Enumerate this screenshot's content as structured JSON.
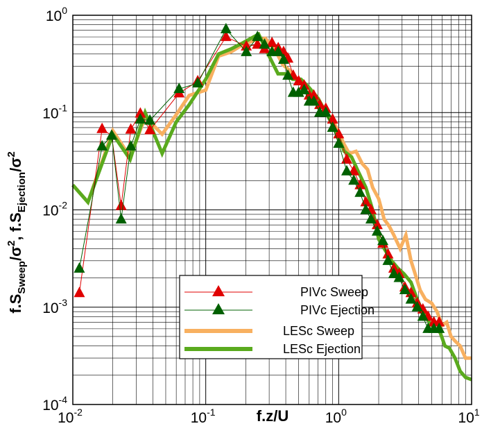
{
  "chart_data": {
    "type": "line",
    "x_scale": "log",
    "y_scale": "log",
    "xlim": [
      0.01,
      10
    ],
    "ylim": [
      0.0001,
      1
    ],
    "grid": true,
    "legend_position": "bottom-center",
    "xlabel": "f.z/U",
    "ylabel": {
      "p1": "f.S",
      "s1": "Sweep",
      "p2": "/σ",
      "e2": "2",
      "p3": ", f.S",
      "s3": "Ejection",
      "p4": "/σ",
      "e4": "2"
    },
    "x_tick_labels": [
      {
        "value": 0.01,
        "base": "10",
        "exp": "-2"
      },
      {
        "value": 0.1,
        "base": "10",
        "exp": "-1"
      },
      {
        "value": 1,
        "base": "10",
        "exp": "0"
      },
      {
        "value": 10,
        "base": "10",
        "exp": "1"
      }
    ],
    "y_tick_labels": [
      {
        "value": 0.0001,
        "base": "10",
        "exp": "-4"
      },
      {
        "value": 0.001,
        "base": "10",
        "exp": "-3"
      },
      {
        "value": 0.01,
        "base": "10",
        "exp": "-2"
      },
      {
        "value": 0.1,
        "base": "10",
        "exp": "-1"
      },
      {
        "value": 1,
        "base": "10",
        "exp": "0"
      }
    ],
    "series": [
      {
        "name": "PIVc Sweep",
        "style": "line-triangles",
        "color": "#e00000",
        "x": [
          0.0112,
          0.0166,
          0.0196,
          0.0231,
          0.0273,
          0.0322,
          0.038,
          0.063,
          0.087,
          0.142,
          0.202,
          0.245,
          0.277,
          0.315,
          0.351,
          0.385,
          0.415,
          0.455,
          0.5,
          0.55,
          0.6,
          0.65,
          0.72,
          0.8,
          0.9,
          1.0,
          1.15,
          1.3,
          1.45,
          1.6,
          1.75,
          1.95,
          2.15,
          2.35,
          2.6,
          2.85,
          3.15,
          3.5,
          3.9,
          4.3,
          4.7,
          5.2,
          5.7
        ],
        "y": [
          0.0014,
          0.068,
          0.058,
          0.011,
          0.067,
          0.098,
          0.066,
          0.158,
          0.21,
          0.6,
          0.48,
          0.5,
          0.45,
          0.52,
          0.46,
          0.42,
          0.36,
          0.24,
          0.21,
          0.19,
          0.15,
          0.15,
          0.12,
          0.11,
          0.085,
          0.06,
          0.033,
          0.025,
          0.018,
          0.012,
          0.01,
          0.007,
          0.0045,
          0.0035,
          0.0025,
          0.0022,
          0.0016,
          0.0014,
          0.0011,
          0.00095,
          0.0008,
          0.0007,
          0.0007
        ]
      },
      {
        "name": "PIVc Ejection",
        "style": "line-triangles",
        "color": "#006000",
        "x": [
          0.0112,
          0.0166,
          0.0196,
          0.0231,
          0.0273,
          0.0322,
          0.038,
          0.063,
          0.087,
          0.142,
          0.202,
          0.245,
          0.277,
          0.315,
          0.351,
          0.385,
          0.415,
          0.455,
          0.5,
          0.55,
          0.6,
          0.65,
          0.72,
          0.8,
          0.9,
          1.0,
          1.15,
          1.3,
          1.45,
          1.6,
          1.75,
          1.95,
          2.15,
          2.35,
          2.6,
          2.85,
          3.15,
          3.5,
          3.9,
          4.3,
          4.7,
          5.2,
          5.7
        ],
        "y": [
          0.0025,
          0.045,
          0.058,
          0.008,
          0.045,
          0.085,
          0.083,
          0.175,
          0.2,
          0.72,
          0.42,
          0.6,
          0.5,
          0.42,
          0.42,
          0.35,
          0.24,
          0.16,
          0.16,
          0.17,
          0.13,
          0.13,
          0.1,
          0.1,
          0.07,
          0.048,
          0.025,
          0.02,
          0.015,
          0.01,
          0.008,
          0.006,
          0.0048,
          0.003,
          0.0022,
          0.002,
          0.0015,
          0.0012,
          0.001,
          0.0008,
          0.0006,
          0.0006,
          0.0006
        ]
      },
      {
        "name": "LESc Sweep",
        "style": "thick-line",
        "color": "#f8b060",
        "x": [
          0.01,
          0.013,
          0.02,
          0.027,
          0.035,
          0.047,
          0.06,
          0.075,
          0.1,
          0.125,
          0.155,
          0.19,
          0.23,
          0.28,
          0.33,
          0.38,
          0.43,
          0.48,
          0.55,
          0.62,
          0.7,
          0.8,
          0.9,
          1.0,
          1.1,
          1.2,
          1.35,
          1.5,
          1.65,
          1.8,
          2.0,
          2.2,
          2.4,
          2.6,
          2.9,
          3.2,
          3.5,
          3.8,
          4.1,
          4.5,
          5.0,
          5.5,
          6.0,
          6.5,
          7.0,
          7.5,
          8.2,
          9.0,
          10.0
        ],
        "y": [
          0.018,
          0.012,
          0.065,
          0.035,
          0.09,
          0.06,
          0.095,
          0.15,
          0.17,
          0.38,
          0.42,
          0.5,
          0.55,
          0.58,
          0.45,
          0.31,
          0.27,
          0.22,
          0.19,
          0.17,
          0.14,
          0.1,
          0.085,
          0.062,
          0.047,
          0.038,
          0.04,
          0.03,
          0.026,
          0.017,
          0.013,
          0.008,
          0.0068,
          0.0055,
          0.004,
          0.0055,
          0.003,
          0.0021,
          0.0015,
          0.0012,
          0.0011,
          0.0009,
          0.00065,
          0.0007,
          0.0005,
          0.00045,
          0.0004,
          0.0003,
          0.0003
        ]
      },
      {
        "name": "LESc Ejection",
        "style": "thick-line",
        "color": "#5aaa1e",
        "x": [
          0.01,
          0.013,
          0.02,
          0.027,
          0.035,
          0.047,
          0.06,
          0.075,
          0.1,
          0.125,
          0.155,
          0.19,
          0.25,
          0.3,
          0.35,
          0.4,
          0.45,
          0.52,
          0.6,
          0.7,
          0.8,
          0.9,
          1.0,
          1.1,
          1.25,
          1.4,
          1.6,
          1.8,
          2.0,
          2.2,
          2.5,
          2.8,
          3.1,
          3.5,
          3.9,
          4.3,
          4.8,
          5.3,
          5.8,
          6.3,
          6.8,
          7.5,
          8.2,
          9.0,
          10.0
        ],
        "y": [
          0.018,
          0.012,
          0.06,
          0.033,
          0.1,
          0.038,
          0.08,
          0.12,
          0.22,
          0.4,
          0.45,
          0.52,
          0.64,
          0.38,
          0.25,
          0.25,
          0.22,
          0.22,
          0.18,
          0.14,
          0.1,
          0.075,
          0.055,
          0.04,
          0.035,
          0.025,
          0.017,
          0.01,
          0.005,
          0.004,
          0.003,
          0.0025,
          0.0022,
          0.0018,
          0.0012,
          0.0009,
          0.0007,
          0.0006,
          0.00055,
          0.0004,
          0.00038,
          0.0003,
          0.00022,
          0.00019,
          0.00018
        ]
      }
    ]
  }
}
